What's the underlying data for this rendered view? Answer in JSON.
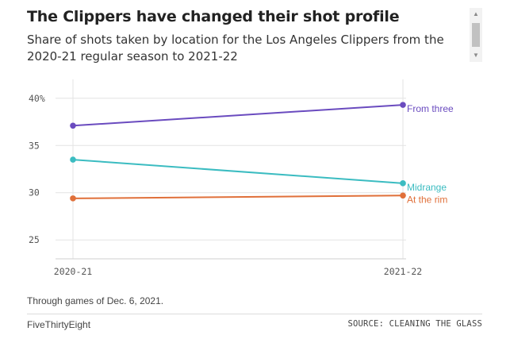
{
  "header": {
    "title": "The Clippers have changed their shot profile",
    "subtitle": "Share of shots taken by location for the Los Angeles Clippers from the 2020-21 regular season to 2021-22"
  },
  "chart_data": {
    "type": "line",
    "title": "The Clippers have changed their shot profile",
    "subtitle": "Share of shots taken by location for the Los Angeles Clippers from the 2020-21 regular season to 2021-22",
    "x": [
      "2020-21",
      "2021-22"
    ],
    "ylim": [
      23,
      42
    ],
    "yticks": [
      25,
      30,
      35,
      40
    ],
    "ytick_labels": [
      "25",
      "30",
      "35",
      "40%"
    ],
    "grid": true,
    "series": [
      {
        "name": "From three",
        "color": "#6a4bbf",
        "values": [
          37.1,
          39.3
        ]
      },
      {
        "name": "Midrange",
        "color": "#3bbcc1",
        "values": [
          33.5,
          31.0
        ]
      },
      {
        "name": "At the rim",
        "color": "#e0703a",
        "values": [
          29.4,
          29.7
        ]
      }
    ]
  },
  "footer": {
    "note": "Through games of Dec. 6, 2021.",
    "brand": "FiveThirtyEight",
    "source": "SOURCE: CLEANING THE GLASS"
  },
  "icons": {
    "scroll_up": "scroll-up-icon",
    "scroll_down": "scroll-down-icon"
  }
}
